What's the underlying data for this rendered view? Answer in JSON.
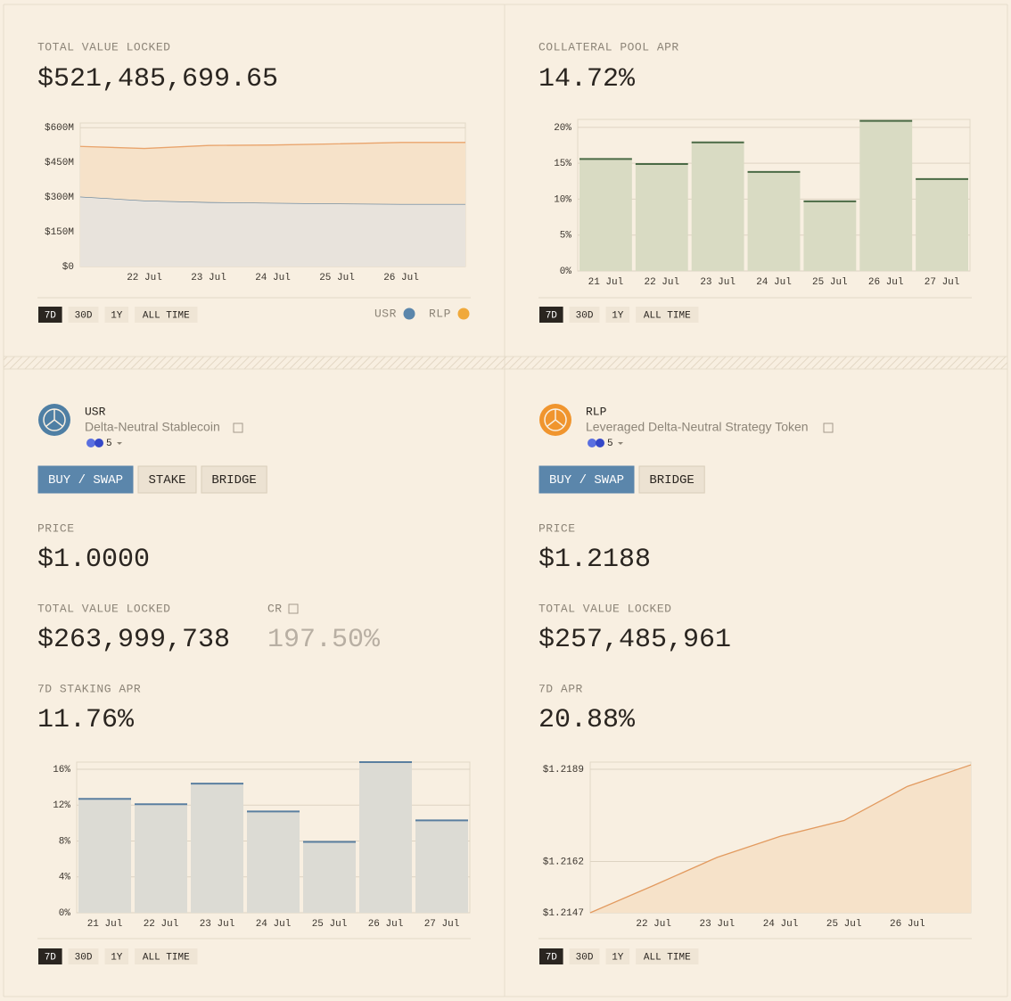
{
  "tvl_card": {
    "label": "TOTAL VALUE LOCKED",
    "value": "$521,485,699.65",
    "chart": {
      "type": "area",
      "stacked": true,
      "categories": [
        null,
        "22 Jul",
        "23 Jul",
        "24 Jul",
        "25 Jul",
        "26 Jul",
        null
      ],
      "series": [
        {
          "name": "USR",
          "color": "#5f7f98",
          "fill": "#e8e3dc",
          "values": [
            302,
            285,
            278,
            275,
            272,
            270,
            270
          ]
        },
        {
          "name": "RLP",
          "color": "#e9a46c",
          "fill": "#f6e2c9",
          "values": [
            217,
            225,
            245,
            250,
            258,
            266,
            266
          ]
        }
      ],
      "ylim": [
        0,
        620
      ],
      "yticks": [
        {
          "value": 0,
          "label": "$0"
        },
        {
          "value": 150,
          "label": "$150M"
        },
        {
          "value": 300,
          "label": "$300M"
        },
        {
          "value": 450,
          "label": "$450M"
        },
        {
          "value": 600,
          "label": "$600M"
        }
      ],
      "grid": true
    },
    "ranges": [
      "7D",
      "30D",
      "1Y",
      "ALL TIME"
    ],
    "active_range": 0
  },
  "apr_card": {
    "label": "COLLATERAL POOL APR",
    "value": "14.72%",
    "chart": {
      "type": "bar",
      "categories": [
        "21 Jul",
        "22 Jul",
        "23 Jul",
        "24 Jul",
        "25 Jul",
        "26 Jul",
        "27 Jul"
      ],
      "values": [
        15.6,
        14.9,
        17.9,
        13.8,
        9.7,
        20.9,
        12.8
      ],
      "color": "#4a6a45",
      "fill": "#d9dbc3",
      "ylim": [
        0,
        21.1
      ],
      "yticks": [
        {
          "value": 0,
          "label": "0%"
        },
        {
          "value": 5,
          "label": "5%"
        },
        {
          "value": 10,
          "label": "10%"
        },
        {
          "value": 15,
          "label": "15%"
        },
        {
          "value": 20,
          "label": "20%"
        }
      ],
      "grid": true
    },
    "ranges": [
      "7D",
      "30D",
      "1Y",
      "ALL TIME"
    ],
    "active_range": 0
  },
  "usr_card": {
    "symbol": "USR",
    "description": "Delta-Neutral Stablecoin",
    "chains": "5",
    "actions": [
      "BUY / SWAP",
      "STAKE",
      "BRIDGE"
    ],
    "stats": [
      {
        "label": "PRICE",
        "value": "$1.0000"
      },
      {
        "label": "TOTAL VALUE LOCKED",
        "value": "$263,999,738"
      },
      {
        "label": "CR",
        "value": "197.50%"
      },
      {
        "label": "7D STAKING APR",
        "value": "11.76%"
      }
    ],
    "chart": {
      "type": "bar",
      "categories": [
        "21 Jul",
        "22 Jul",
        "23 Jul",
        "24 Jul",
        "25 Jul",
        "26 Jul",
        "27 Jul"
      ],
      "values": [
        12.7,
        12.1,
        14.4,
        11.3,
        7.9,
        16.8,
        10.3
      ],
      "color": "#5a7fa0",
      "fill": "#dcdbd4",
      "ylim": [
        0,
        16.8
      ],
      "yticks": [
        {
          "value": 0,
          "label": "0%"
        },
        {
          "value": 4,
          "label": "4%"
        },
        {
          "value": 8,
          "label": "8%"
        },
        {
          "value": 12,
          "label": "12%"
        },
        {
          "value": 16,
          "label": "16%"
        }
      ],
      "grid": true
    },
    "ranges": [
      "7D",
      "30D",
      "1Y",
      "ALL TIME"
    ],
    "active_range": 0
  },
  "rlp_card": {
    "symbol": "RLP",
    "description": "Leveraged Delta-Neutral Strategy Token",
    "chains": "5",
    "actions": [
      "BUY / SWAP",
      "BRIDGE"
    ],
    "stats": [
      {
        "label": "PRICE",
        "value": "$1.2188"
      },
      {
        "label": "TOTAL VALUE LOCKED",
        "value": "$257,485,961"
      },
      {
        "label": "7D APR",
        "value": "20.88%"
      }
    ],
    "chart": {
      "type": "area",
      "stacked": false,
      "categories": [
        null,
        "22 Jul",
        "23 Jul",
        "24 Jul",
        "25 Jul",
        "26 Jul",
        null
      ],
      "series": [
        {
          "name": "RLP",
          "color": "#e29a5f",
          "fill": "#f6e2c9",
          "values": [
            1.2147,
            1.2155,
            1.21632,
            1.21694,
            1.2174,
            1.2184,
            1.21903
          ]
        }
      ],
      "ylim": [
        1.2147,
        1.21911
      ],
      "yticks": [
        {
          "value": 1.2147,
          "label": "$1.2147"
        },
        {
          "value": 1.2162,
          "label": "$1.2162"
        },
        {
          "value": 1.2189,
          "label": "$1.2189"
        }
      ],
      "grid": true
    },
    "ranges": [
      "7D",
      "30D",
      "1Y",
      "ALL TIME"
    ],
    "active_range": 0
  }
}
